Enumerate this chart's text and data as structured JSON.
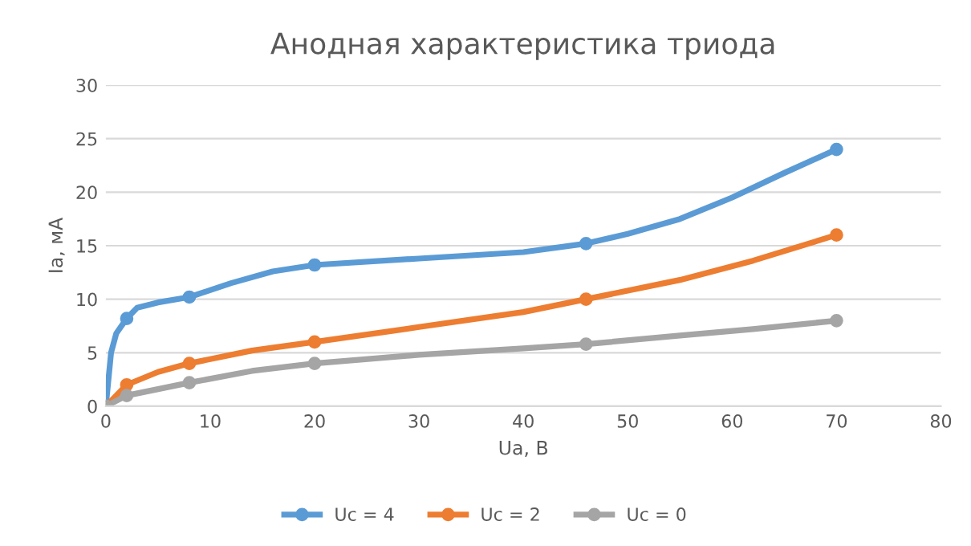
{
  "chart_data": {
    "type": "line",
    "title": "Анодная характеристика триода",
    "xlabel": "Ua, В",
    "ylabel": "Ia, мА",
    "xlim": [
      0,
      80
    ],
    "xticks": [
      0,
      10,
      20,
      30,
      40,
      50,
      60,
      70,
      80
    ],
    "ylim": [
      0,
      30
    ],
    "yticks": [
      0,
      5,
      10,
      15,
      20,
      25,
      30
    ],
    "grid": "y",
    "legend": "bottom",
    "marker": "circle",
    "line_style": "solid",
    "series": [
      {
        "name": "Uc = 4",
        "color": "#5b9bd5",
        "marker": "none",
        "x": [
          0,
          0.5,
          1,
          2,
          3,
          5,
          8,
          12,
          16,
          20,
          30,
          40,
          46,
          50,
          55,
          60,
          65,
          70
        ],
        "values": [
          0,
          5,
          6.8,
          8.2,
          9.2,
          9.7,
          10.2,
          11.5,
          12.6,
          13.2,
          13.8,
          14.4,
          15.2,
          16.1,
          17.5,
          19.5,
          21.8,
          24
        ]
      },
      {
        "name": "Uc = 2",
        "color": "#ed7d31",
        "marker": "none",
        "x": [
          0,
          2,
          5,
          8,
          14,
          20,
          30,
          40,
          46,
          55,
          62,
          70
        ],
        "values": [
          0,
          2,
          3.2,
          4,
          5.2,
          6,
          7.4,
          8.8,
          10,
          11.8,
          13.6,
          16
        ]
      },
      {
        "name": "Uc = 0",
        "color": "#a5a5a5",
        "marker": "none",
        "x": [
          0,
          2,
          8,
          14,
          20,
          30,
          40,
          46,
          55,
          62,
          70
        ],
        "values": [
          0,
          1,
          2.2,
          3.3,
          4,
          4.8,
          5.4,
          5.8,
          6.6,
          7.2,
          8
        ]
      },
      {
        "type": "scatter",
        "color": "#5b9bd5",
        "x": [
          0,
          2,
          8,
          20,
          46,
          70
        ],
        "values": [
          0,
          8.2,
          10.2,
          13.2,
          15.2,
          24
        ]
      },
      {
        "type": "scatter",
        "color": "#ed7d31",
        "x": [
          0,
          2,
          8,
          20,
          46,
          70
        ],
        "values": [
          0,
          2,
          4,
          6,
          10,
          16
        ]
      },
      {
        "type": "scatter",
        "color": "#a5a5a5",
        "x": [
          0,
          2,
          8,
          20,
          46,
          70
        ],
        "values": [
          0,
          1,
          2.2,
          4,
          5.8,
          8
        ]
      }
    ]
  }
}
